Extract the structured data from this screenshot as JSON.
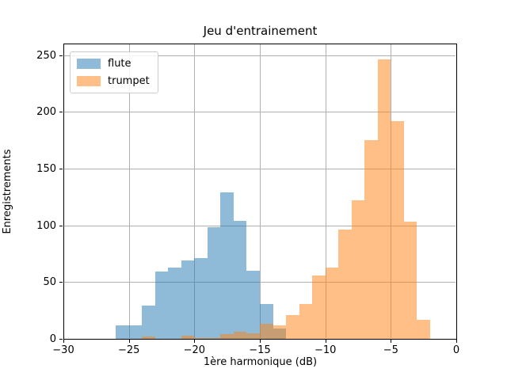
{
  "chart_data": {
    "type": "bar",
    "subtype": "histogram",
    "title": "Jeu d'entrainement",
    "xlabel": "1ère harmonique (dB)",
    "ylabel": "Enregistrements",
    "xlim": [
      -30,
      0
    ],
    "ylim": [
      0,
      260
    ],
    "xticks": [
      -30,
      -25,
      -20,
      -15,
      -10,
      -5,
      0
    ],
    "xtick_labels": [
      "−30",
      "−25",
      "−20",
      "−15",
      "−10",
      "−5",
      "0"
    ],
    "yticks": [
      0,
      50,
      100,
      150,
      200,
      250
    ],
    "ytick_labels": [
      "0",
      "50",
      "100",
      "150",
      "200",
      "250"
    ],
    "grid": true,
    "grid_color": "#b0b0b0",
    "legend_position": "upper left",
    "bin_width": 1,
    "series": [
      {
        "name": "flute",
        "color": "#1f77b4",
        "alpha": 0.5,
        "bin_start": -26,
        "values": [
          12,
          12,
          29,
          59,
          63,
          69,
          71,
          98,
          129,
          104,
          60,
          31,
          9
        ]
      },
      {
        "name": "trumpet",
        "color": "#ff7f0e",
        "alpha": 0.5,
        "bin_start": -24,
        "values": [
          2,
          0,
          0,
          3,
          1,
          1,
          4,
          6,
          5,
          13,
          12,
          21,
          31,
          56,
          63,
          96,
          122,
          175,
          246,
          192,
          103,
          17
        ]
      }
    ]
  }
}
